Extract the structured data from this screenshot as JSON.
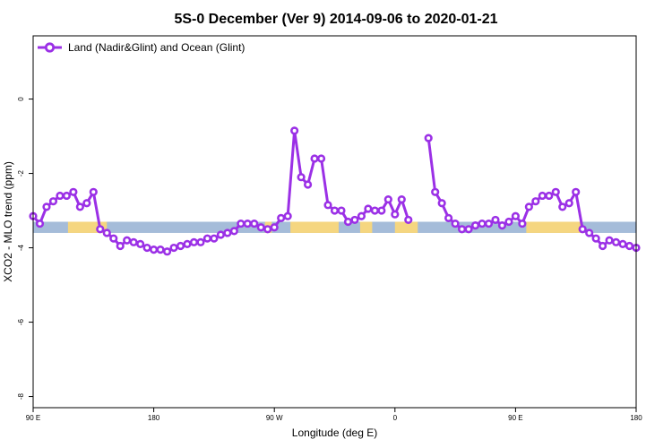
{
  "chart_data": {
    "type": "line",
    "title": "5S-0 December (Ver 9)   2014-09-06 to 2020-01-21",
    "xlabel": "Longitude (deg E)",
    "ylabel": "XCO2 - MLO trend (ppm)",
    "xlim": [
      90,
      540
    ],
    "ylim": [
      -8.3,
      1.7
    ],
    "x_ticks": [
      {
        "value": 90,
        "label": "90 E"
      },
      {
        "value": 180,
        "label": "180"
      },
      {
        "value": 270,
        "label": "90 W"
      },
      {
        "value": 360,
        "label": "0"
      },
      {
        "value": 450,
        "label": "90 E"
      },
      {
        "value": 540,
        "label": "180"
      }
    ],
    "y_ticks": [
      {
        "value": 0,
        "label": "0"
      },
      {
        "value": -2,
        "label": "-2"
      },
      {
        "value": -4,
        "label": "-4"
      },
      {
        "value": -6,
        "label": "-6"
      },
      {
        "value": -8,
        "label": "-8"
      }
    ],
    "legend": {
      "position": "top-left",
      "entries": [
        "Land (Nadir&Glint) and Ocean (Glint)"
      ]
    },
    "series": [
      {
        "name": "Land (Nadir&Glint) and Ocean (Glint)",
        "color": "#9b30e6",
        "x": [
          90,
          95,
          100,
          105,
          110,
          115,
          120,
          125,
          130,
          135,
          140,
          145,
          150,
          155,
          160,
          165,
          170,
          175,
          180,
          185,
          190,
          195,
          200,
          205,
          210,
          215,
          220,
          225,
          230,
          235,
          240,
          245,
          250,
          255,
          260,
          265,
          270,
          275,
          280,
          285,
          290,
          295,
          300,
          305,
          310,
          315,
          320,
          325,
          330,
          335,
          340,
          345,
          350,
          355,
          360,
          365,
          370,
          375,
          380,
          385,
          390,
          395,
          400,
          405,
          410,
          415,
          420,
          425,
          430,
          435,
          440,
          445,
          450,
          455,
          460,
          465,
          470,
          475,
          480,
          485,
          490,
          495,
          500,
          505,
          510,
          515,
          520,
          525,
          530,
          535,
          540
        ],
        "values": [
          -3.15,
          -3.35,
          -2.9,
          -2.75,
          -2.6,
          -2.6,
          -2.5,
          -2.9,
          -2.8,
          -2.5,
          -3.5,
          -3.6,
          -3.75,
          -3.95,
          -3.8,
          -3.85,
          -3.9,
          -4.0,
          -4.05,
          -4.05,
          -4.1,
          -4.0,
          -3.95,
          -3.9,
          -3.85,
          -3.85,
          -3.75,
          -3.75,
          -3.65,
          -3.6,
          -3.55,
          -3.35,
          -3.35,
          -3.35,
          -3.45,
          -3.5,
          -3.45,
          -3.2,
          -3.15,
          -0.85,
          -2.1,
          -2.3,
          -1.6,
          -1.6,
          -2.85,
          -3.0,
          -3.0,
          -3.3,
          -3.25,
          -3.15,
          -2.95,
          -3.0,
          -3.0,
          -2.7,
          -3.1,
          -2.7,
          -3.25,
          null,
          null,
          -1.05,
          -2.5,
          -2.8,
          -3.2,
          -3.35,
          -3.5,
          -3.5,
          -3.4,
          -3.35,
          -3.35,
          -3.25,
          -3.4,
          -3.3,
          -3.15,
          -3.35,
          -2.9,
          -2.75,
          -2.6,
          -2.6,
          -2.5,
          -2.9,
          -2.8,
          -2.5,
          -3.5,
          -3.6,
          -3.75,
          -3.95,
          -3.8,
          -3.85,
          -3.9,
          -3.95,
          -4.0
        ]
      }
    ],
    "background_band": {
      "y_range": [
        -3.6,
        -3.3
      ],
      "ocean_color": "#a5bcd9",
      "land_color": "#f5d680",
      "land_segments": [
        [
          116,
          145
        ],
        [
          263,
          268
        ],
        [
          282,
          318
        ],
        [
          334,
          343
        ],
        [
          360,
          377
        ],
        [
          458,
          500
        ]
      ]
    }
  }
}
